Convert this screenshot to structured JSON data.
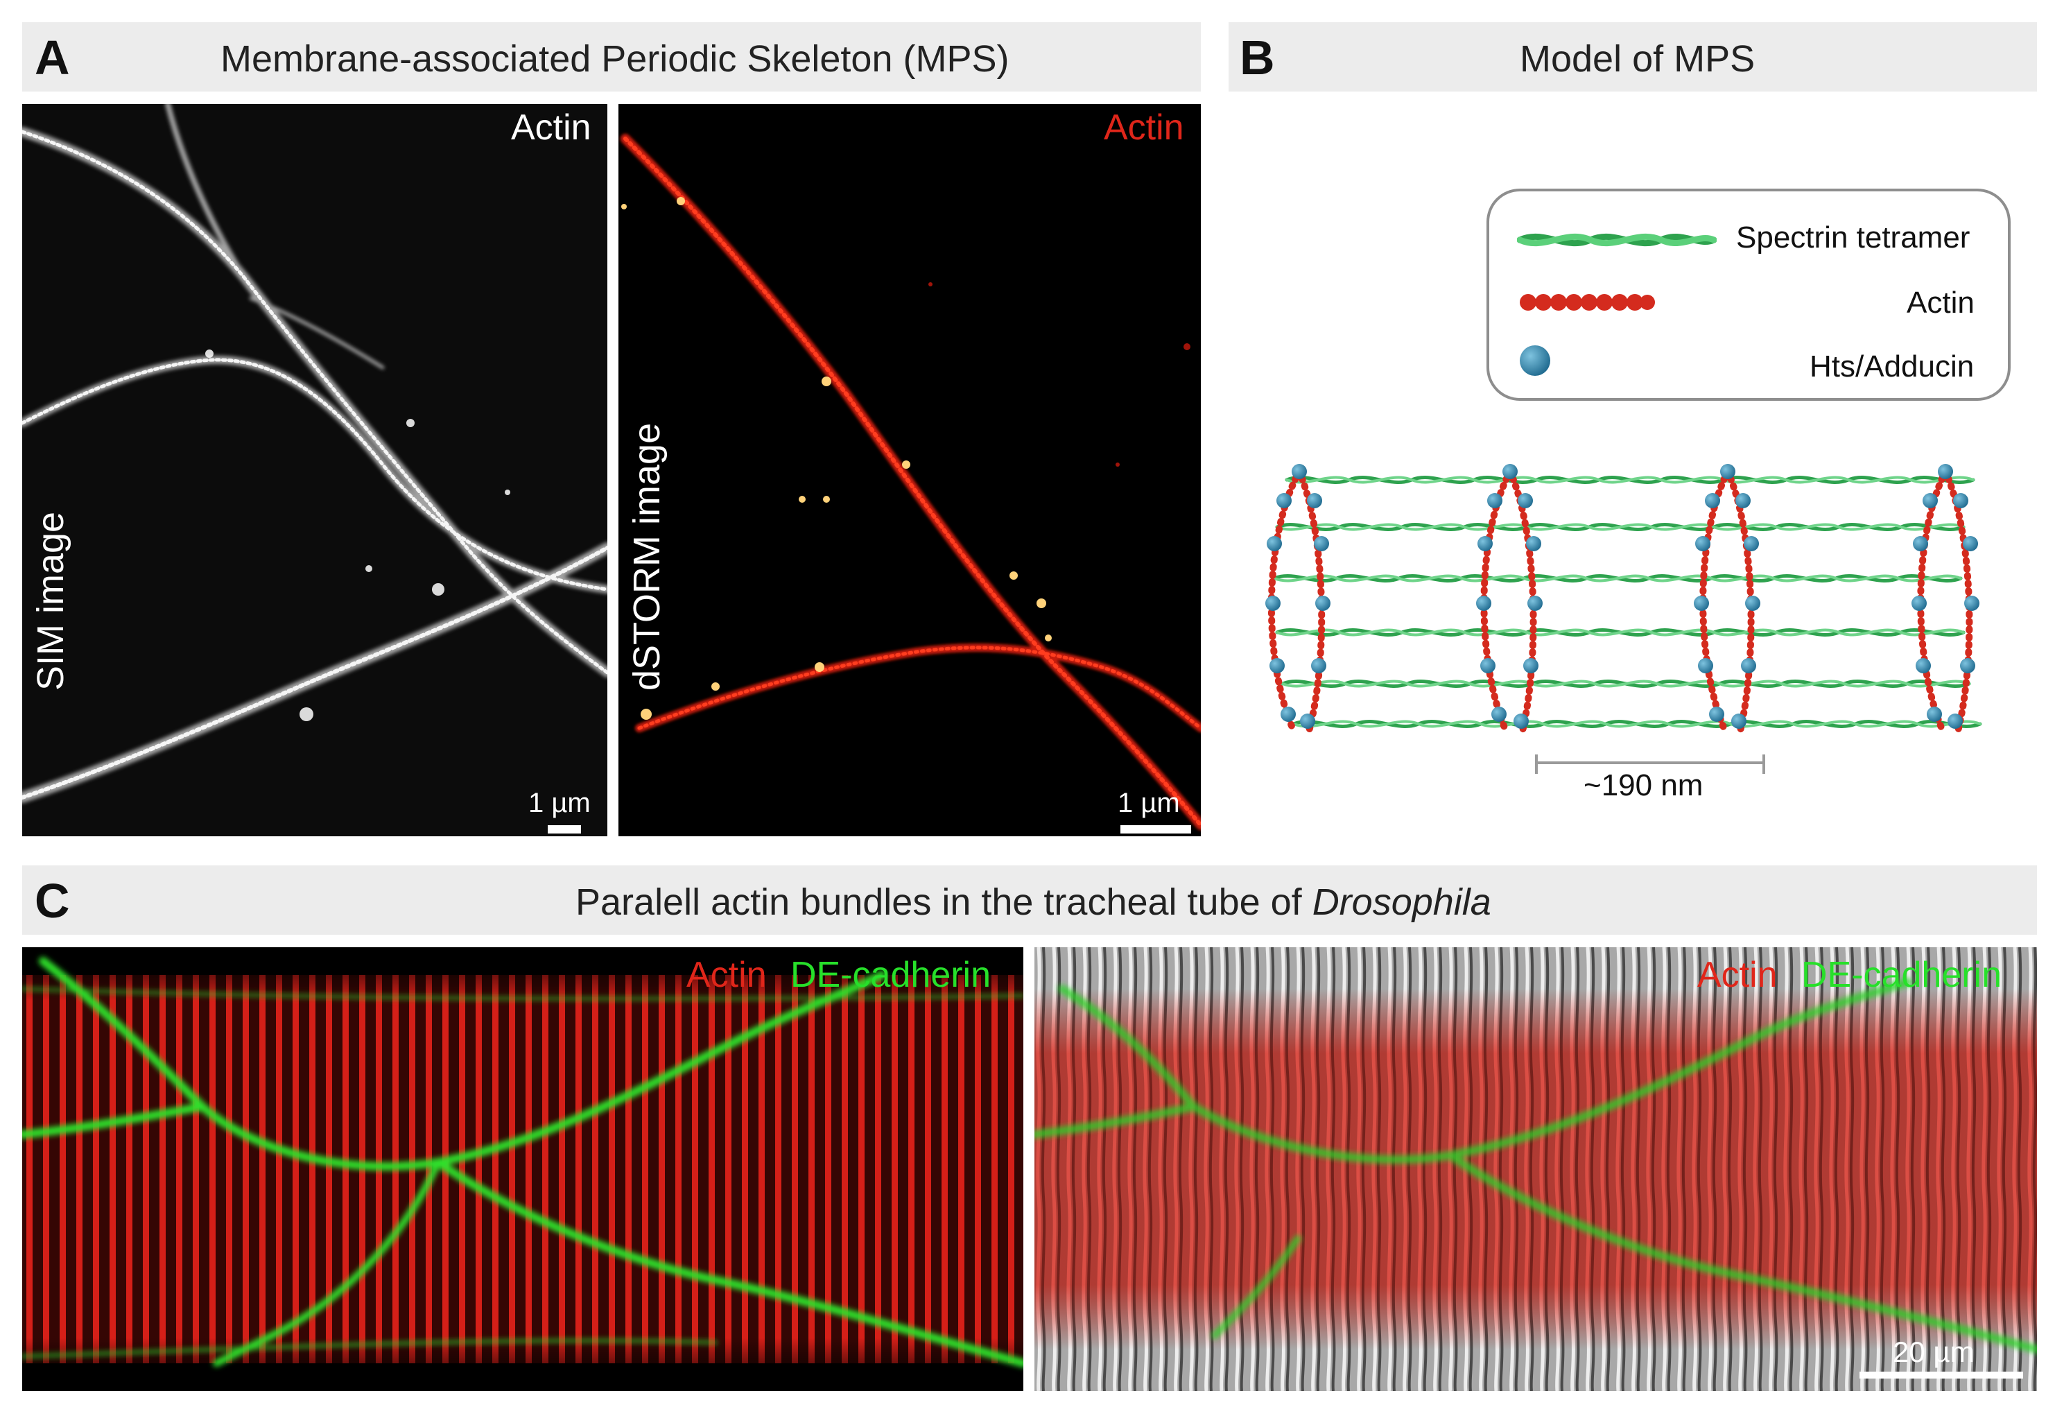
{
  "panel_a": {
    "letter": "A",
    "title": "Membrane-associated Periodic Skeleton (MPS)",
    "left_image": {
      "channel": "Actin",
      "side_label": "SIM image",
      "scale": "1 µm"
    },
    "right_image": {
      "channel": "Actin",
      "side_label": "dSTORM image",
      "scale": "1 µm"
    }
  },
  "panel_b": {
    "letter": "B",
    "title": "Model of MPS",
    "legend": [
      {
        "label": "Spectrin tetramer",
        "icon": "spectrin-tetramer-icon",
        "color": "#3cb35a"
      },
      {
        "label": "Actin",
        "icon": "actin-filament-icon",
        "color": "#d42b1e"
      },
      {
        "label": "Hts/Adducin",
        "icon": "adducin-sphere-icon",
        "color": "#2f7fa6"
      }
    ],
    "spacing": "~190 nm"
  },
  "panel_c": {
    "letter": "C",
    "title_plain": "Paralell actin bundles in the tracheal tube of ",
    "title_italic": "Drosophila",
    "left_image": {
      "channel_1": "Actin",
      "channel_2": "DE-cadherin"
    },
    "right_image": {
      "channel_1": "Actin",
      "channel_2": "DE-cadherin",
      "scale": "20 µm"
    }
  },
  "colors": {
    "header_bg": "#ececec",
    "actin_red": "#e0261a",
    "cadherin_green": "#27e02a",
    "adducin_blue": "#2f7fa6"
  }
}
